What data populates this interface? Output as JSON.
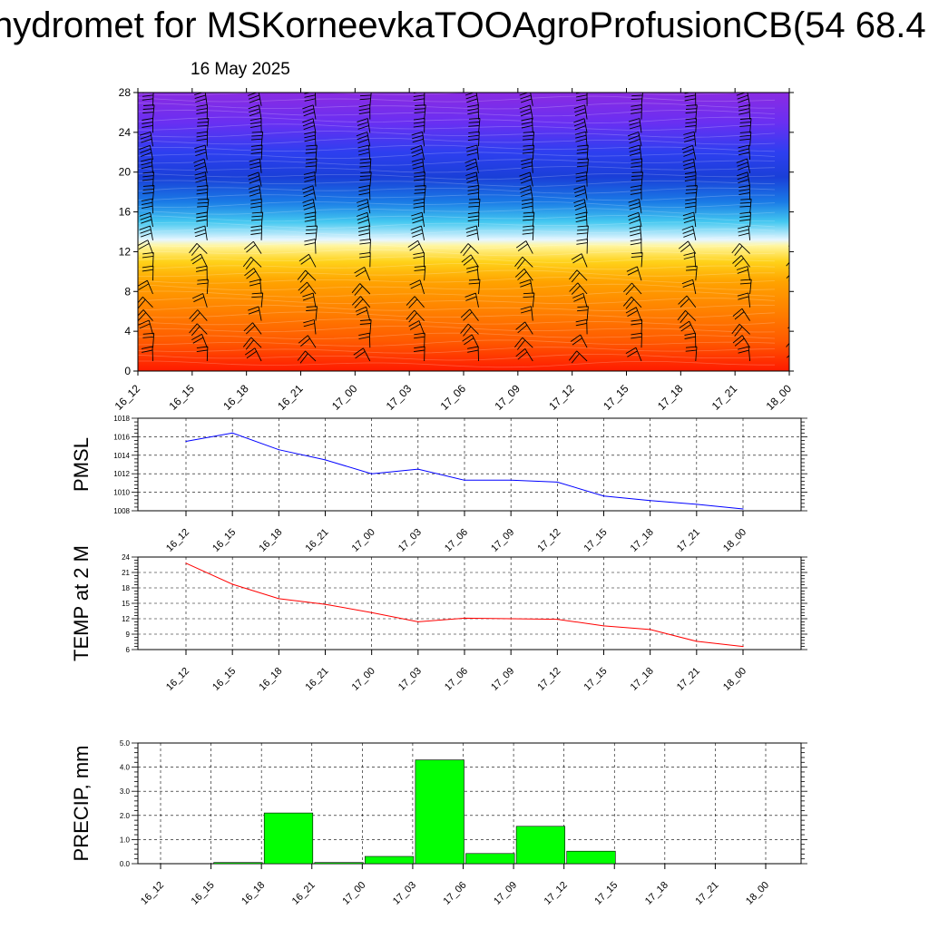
{
  "title": "hydromet for MSKorneevkaTOOAgroProfusionCB(54 68.4",
  "subtitle": "16 May 2025",
  "colors": {
    "pmsl_line": "#0000ff",
    "temp_line": "#ff0000",
    "precip_bar": "#00ff00",
    "grid": "#000000"
  },
  "chart_data": [
    {
      "type": "heatmap",
      "name": "cross-section",
      "x_ticks": [
        "16_12",
        "16_15",
        "16_18",
        "16_21",
        "17_00",
        "17_03",
        "17_06",
        "17_09",
        "17_12",
        "17_15",
        "17_18",
        "17_21",
        "18_00"
      ],
      "ylim": [
        0,
        28
      ],
      "y_ticks": [
        0,
        4,
        8,
        12,
        16,
        20,
        24,
        28
      ],
      "color_scale": [
        {
          "level": 0,
          "color": "#ff1a00"
        },
        {
          "level": 3,
          "color": "#ff5a00"
        },
        {
          "level": 6,
          "color": "#ff8000"
        },
        {
          "level": 9,
          "color": "#ffa300"
        },
        {
          "level": 11,
          "color": "#ffd21a"
        },
        {
          "level": 12.6,
          "color": "#fff6a0"
        },
        {
          "level": 13.2,
          "color": "#e6f6ff"
        },
        {
          "level": 15,
          "color": "#44c8f0"
        },
        {
          "level": 17,
          "color": "#1a7be6"
        },
        {
          "level": 19.5,
          "color": "#1a3fd8"
        },
        {
          "level": 22,
          "color": "#2e3ff0"
        },
        {
          "level": 25,
          "color": "#6a2ff2"
        },
        {
          "level": 28,
          "color": "#8a2be2"
        }
      ],
      "wind_barbs": true
    },
    {
      "type": "line",
      "ylabel": "PMSL",
      "x": [
        "16_12",
        "16_15",
        "16_18",
        "16_21",
        "17_00",
        "17_03",
        "17_06",
        "17_09",
        "17_12",
        "17_15",
        "17_18",
        "17_21",
        "18_00"
      ],
      "ylim": [
        1008,
        1018
      ],
      "y_ticks": [
        1008,
        1010,
        1012,
        1014,
        1016,
        1018
      ],
      "y_tick_labels": [
        "1008",
        "1010",
        "1012",
        "1014",
        "1016",
        "1018"
      ],
      "series": [
        {
          "values": [
            1015.5,
            1016.4,
            1014.6,
            1013.5,
            1012.0,
            1012.5,
            1011.3,
            1011.3,
            1011.1,
            1009.6,
            1009.1,
            1008.7,
            1008.2
          ]
        }
      ]
    },
    {
      "type": "line",
      "ylabel": "TEMP at 2 M",
      "x": [
        "16_12",
        "16_15",
        "16_18",
        "16_21",
        "17_00",
        "17_03",
        "17_06",
        "17_09",
        "17_12",
        "17_15",
        "17_18",
        "17_21",
        "18_00"
      ],
      "ylim": [
        6,
        24
      ],
      "y_ticks": [
        6,
        9,
        12,
        15,
        18,
        21,
        24
      ],
      "y_tick_labels": [
        "6",
        "9",
        "12",
        "15",
        "18",
        "21",
        "24"
      ],
      "series": [
        {
          "values": [
            22.8,
            18.7,
            15.9,
            14.8,
            13.2,
            11.4,
            12.1,
            12.0,
            11.9,
            10.6,
            9.9,
            7.6,
            6.6
          ]
        }
      ]
    },
    {
      "type": "bar",
      "ylabel": "PRECIP, mm",
      "categories": [
        "16_12",
        "16_15",
        "16_18",
        "16_21",
        "17_00",
        "17_03",
        "17_06",
        "17_09",
        "17_12",
        "17_15",
        "17_18",
        "17_21",
        "18_00"
      ],
      "values": [
        0,
        0.05,
        2.1,
        0.05,
        0.3,
        4.3,
        0.42,
        1.55,
        0.52,
        0,
        0,
        0,
        0
      ],
      "ylim": [
        0,
        5.0
      ],
      "y_ticks": [
        0,
        1,
        2,
        3,
        4,
        5
      ],
      "y_tick_labels": [
        "0.0",
        "1.0",
        "2.0",
        "3.0",
        "4.0",
        "5.0"
      ]
    }
  ]
}
